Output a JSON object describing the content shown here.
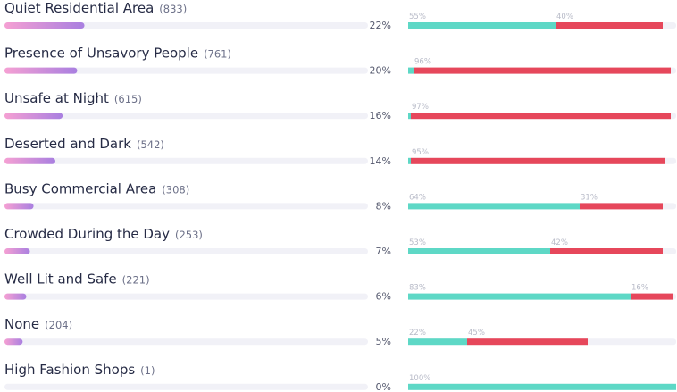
{
  "rows": [
    {
      "label": "Quiet Residential Area",
      "count": "(833)",
      "share": 22,
      "share_label": "22%",
      "segments": [
        {
          "value": 55,
          "label": "55%"
        },
        {
          "value": 40,
          "label": "40%"
        }
      ]
    },
    {
      "label": "Presence of Unsavory People",
      "count": "(761)",
      "share": 20,
      "share_label": "20%",
      "segments": [
        {
          "value": 2
        },
        {
          "value": 96,
          "label": "96%"
        }
      ]
    },
    {
      "label": "Unsafe at Night",
      "count": "(615)",
      "share": 16,
      "share_label": "16%",
      "segments": [
        {
          "value": 1
        },
        {
          "value": 97,
          "label": "97%"
        }
      ]
    },
    {
      "label": "Deserted and Dark",
      "count": "(542)",
      "share": 14,
      "share_label": "14%",
      "segments": [
        {
          "value": 1
        },
        {
          "value": 95,
          "label": "95%"
        }
      ]
    },
    {
      "label": "Busy Commercial Area",
      "count": "(308)",
      "share": 8,
      "share_label": "8%",
      "segments": [
        {
          "value": 64,
          "label": "64%"
        },
        {
          "value": 31,
          "label": "31%"
        }
      ]
    },
    {
      "label": "Crowded During the Day",
      "count": "(253)",
      "share": 7,
      "share_label": "7%",
      "segments": [
        {
          "value": 53,
          "label": "53%"
        },
        {
          "value": 42,
          "label": "42%"
        }
      ]
    },
    {
      "label": "Well Lit and Safe",
      "count": "(221)",
      "share": 6,
      "share_label": "6%",
      "segments": [
        {
          "value": 83,
          "label": "83%"
        },
        {
          "value": 16,
          "label": "16%"
        }
      ]
    },
    {
      "label": "None",
      "count": "(204)",
      "share": 5,
      "share_label": "5%",
      "segments": [
        {
          "value": 22,
          "label": "22%"
        },
        {
          "value": 45,
          "label": "45%"
        }
      ]
    },
    {
      "label": "High Fashion Shops",
      "count": "(1)",
      "share": 0,
      "share_label": "0%",
      "segments": [
        {
          "value": 100,
          "label": "100%"
        }
      ]
    }
  ],
  "colors": {
    "positive": "#5ed8c6",
    "negative": "#e6475b"
  }
}
